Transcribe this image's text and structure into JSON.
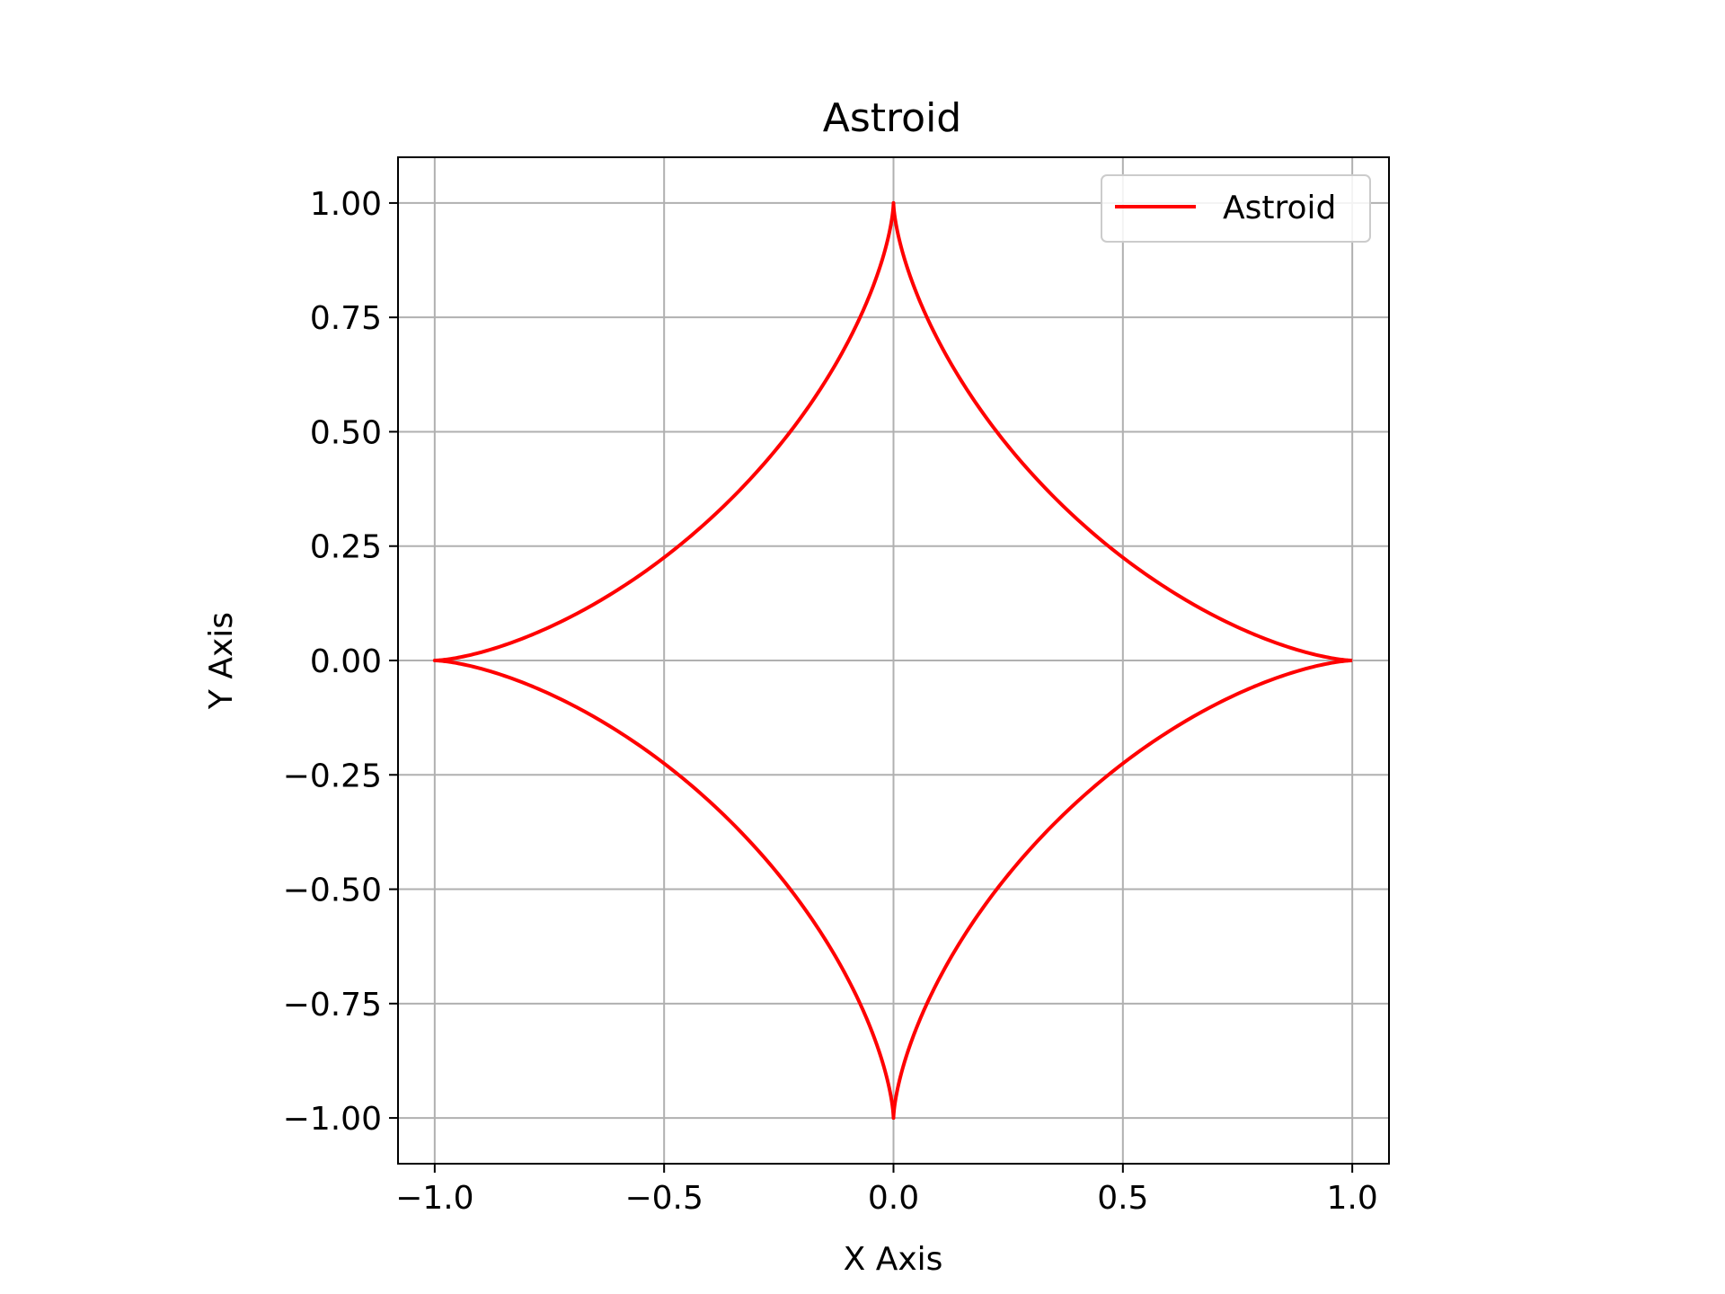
{
  "chart_data": {
    "type": "line",
    "title": "Astroid",
    "xlabel": "X Axis",
    "ylabel": "Y Axis",
    "xlim": [
      -1.08,
      1.08
    ],
    "ylim": [
      -1.1,
      1.1
    ],
    "xticks": [
      -1.0,
      -0.5,
      0.0,
      0.5,
      1.0
    ],
    "xtick_labels": [
      "−1.0",
      "−0.5",
      "0.0",
      "0.5",
      "1.0"
    ],
    "yticks": [
      -1.0,
      -0.75,
      -0.5,
      -0.25,
      0.0,
      0.25,
      0.5,
      0.75,
      1.0
    ],
    "ytick_labels": [
      "−1.00",
      "−0.75",
      "−0.50",
      "−0.25",
      "0.00",
      "0.25",
      "0.50",
      "0.75",
      "1.00"
    ],
    "grid": true,
    "legend": {
      "placement": "top-right",
      "entries": [
        "Astroid"
      ]
    },
    "series": [
      {
        "name": "Astroid",
        "color": "#ff0000",
        "equation": "x = cos(t)^3, y = sin(t)^3",
        "x": [
          1.0,
          0.897,
          0.628,
          0.324,
          0.103,
          0.011,
          0.0,
          -0.011,
          -0.103,
          -0.324,
          -0.628,
          -0.897,
          -1.0,
          -0.897,
          -0.628,
          -0.324,
          -0.103,
          -0.011,
          0.0,
          0.011,
          0.103,
          0.324,
          0.628,
          0.897,
          1.0
        ],
        "y": [
          0.0,
          0.011,
          0.103,
          0.324,
          0.628,
          0.897,
          1.0,
          0.897,
          0.628,
          0.324,
          0.103,
          0.011,
          0.0,
          -0.011,
          -0.103,
          -0.324,
          -0.628,
          -0.897,
          -1.0,
          -0.897,
          -0.628,
          -0.324,
          -0.103,
          -0.011,
          0.0
        ]
      }
    ]
  }
}
